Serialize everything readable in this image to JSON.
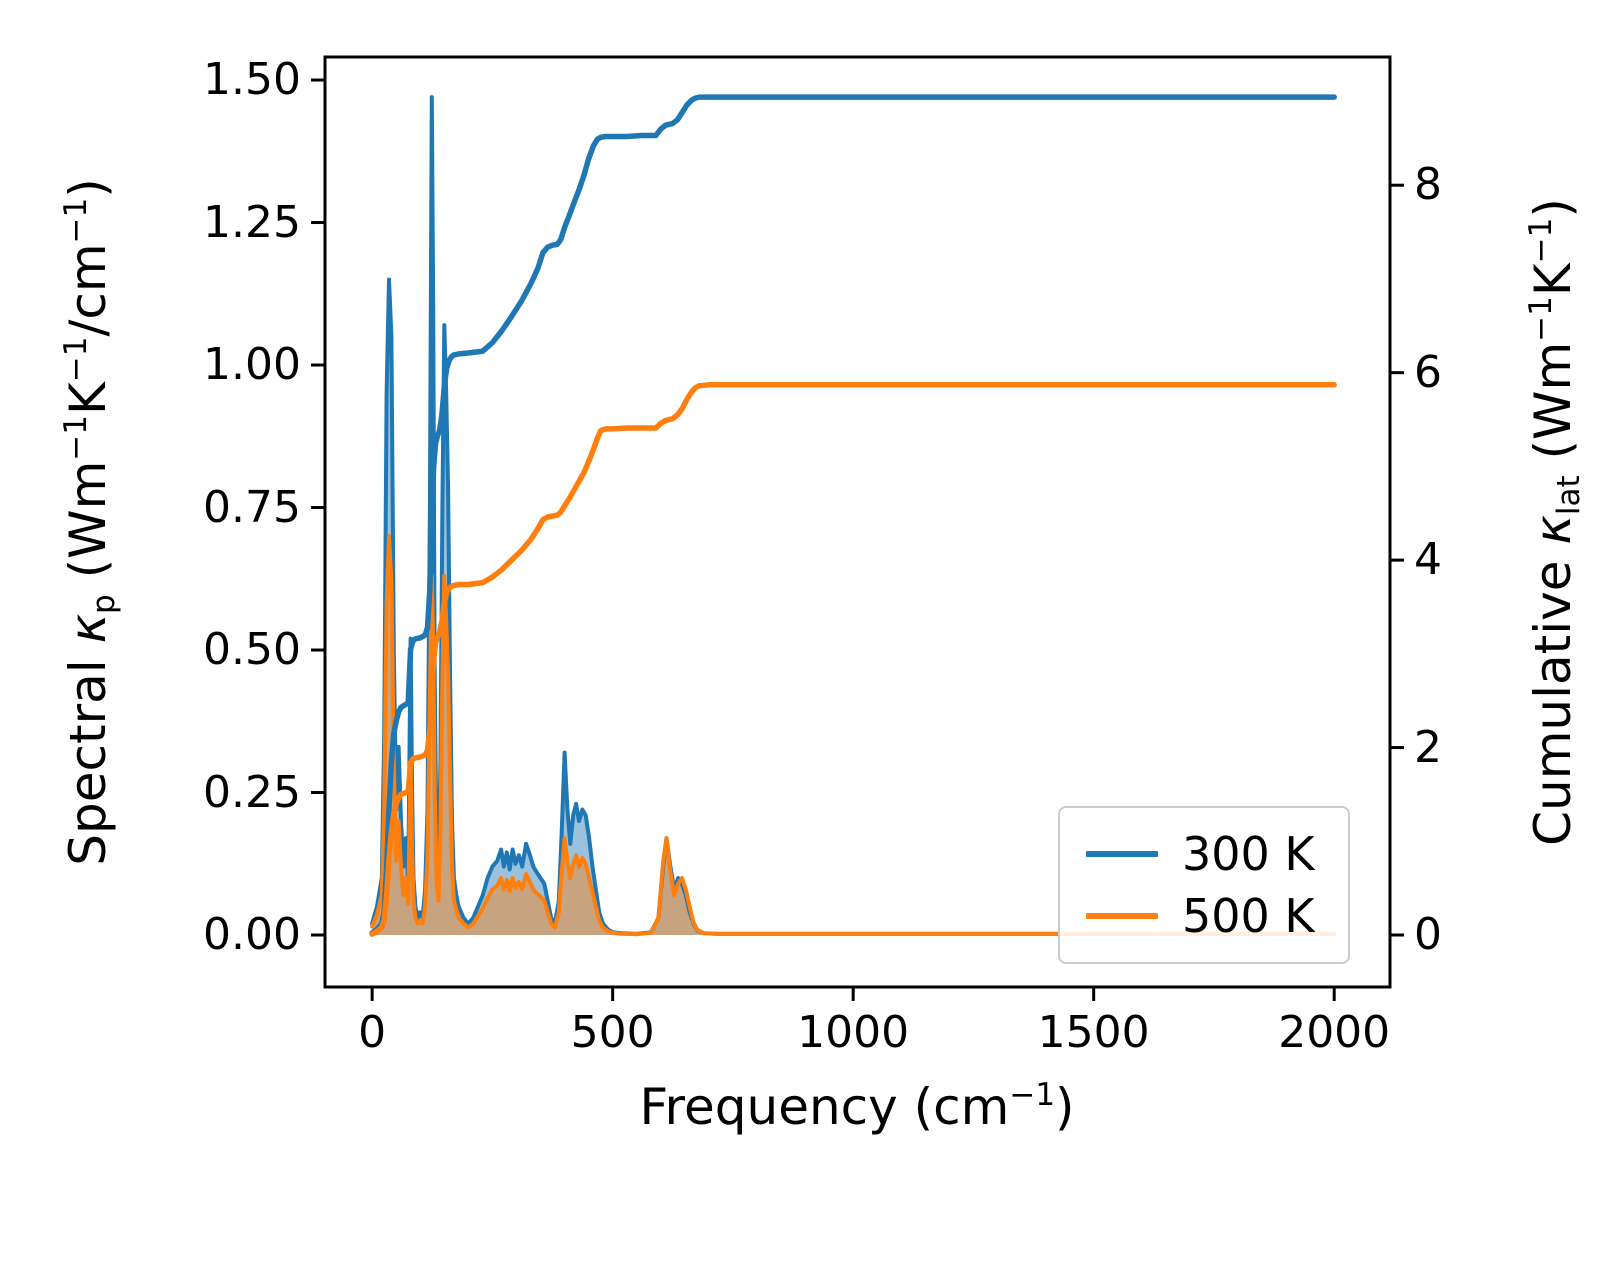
{
  "chart_data": {
    "type": "line",
    "xlabel_segments": [
      {
        "t": "Frequency (cm"
      },
      {
        "t": "−1",
        "sup": true
      },
      {
        "t": ")"
      }
    ],
    "ylabel_left_segments": [
      {
        "t": "Spectral "
      },
      {
        "t": "κ",
        "italic": true
      },
      {
        "t": "p",
        "sub": true
      },
      {
        "t": " (Wm"
      },
      {
        "t": "−1",
        "sup": true
      },
      {
        "t": "K"
      },
      {
        "t": "−1",
        "sup": true
      },
      {
        "t": "/cm"
      },
      {
        "t": "−1",
        "sup": true
      },
      {
        "t": ")"
      }
    ],
    "ylabel_right_segments": [
      {
        "t": "Cumulative "
      },
      {
        "t": "κ",
        "italic": true
      },
      {
        "t": "lat",
        "sub": true
      },
      {
        "t": " (Wm"
      },
      {
        "t": "−1",
        "sup": true
      },
      {
        "t": "K"
      },
      {
        "t": "−1",
        "sup": true
      },
      {
        "t": ")"
      }
    ],
    "xlim": [
      -98,
      2116
    ],
    "ylim_left": [
      -0.0912,
      1.5404
    ],
    "ylim_right": [
      -0.5547,
      9.368
    ],
    "xticks": {
      "values": [
        0,
        500,
        1000,
        1500,
        2000
      ],
      "labels": [
        "0",
        "500",
        "1000",
        "1500",
        "2000"
      ]
    },
    "yticks_left": {
      "values": [
        0,
        0.25,
        0.5,
        0.75,
        1.0,
        1.25,
        1.5
      ],
      "labels": [
        "0.00",
        "0.25",
        "0.50",
        "0.75",
        "1.00",
        "1.25",
        "1.50"
      ]
    },
    "yticks_right": {
      "values": [
        0,
        2,
        4,
        6,
        8
      ],
      "labels": [
        "0",
        "2",
        "4",
        "6",
        "8"
      ]
    },
    "legend": {
      "location": "lower right",
      "entries": [
        {
          "label": "300 K",
          "color": "#1f77b4"
        },
        {
          "label": "500 K",
          "color": "#ff7f0e"
        }
      ]
    },
    "spectral_x": [
      0,
      10,
      20,
      25,
      30,
      35,
      40,
      45,
      50,
      55,
      60,
      65,
      70,
      75,
      80,
      83,
      86,
      90,
      95,
      100,
      105,
      110,
      115,
      120,
      124,
      127,
      130,
      134,
      138,
      142,
      146,
      150,
      154,
      158,
      162,
      166,
      170,
      175,
      180,
      190,
      200,
      210,
      220,
      230,
      240,
      250,
      260,
      268,
      274,
      280,
      286,
      292,
      298,
      305,
      312,
      320,
      328,
      335,
      342,
      350,
      358,
      365,
      372,
      380,
      388,
      394,
      400,
      406,
      412,
      418,
      424,
      430,
      437,
      444,
      451,
      458,
      465,
      472,
      480,
      490,
      500,
      520,
      550,
      580,
      595,
      605,
      612,
      620,
      628,
      636,
      644,
      652,
      660,
      668,
      676,
      690,
      720,
      800,
      1000,
      1250,
      1500,
      1750,
      2000
    ],
    "cumulative_x": [
      0,
      10,
      20,
      25,
      30,
      35,
      40,
      45,
      50,
      55,
      60,
      70,
      75,
      80,
      85,
      90,
      100,
      110,
      115,
      120,
      124,
      128,
      132,
      136,
      140,
      145,
      150,
      155,
      160,
      165,
      170,
      180,
      200,
      230,
      250,
      270,
      290,
      310,
      330,
      345,
      355,
      365,
      375,
      385,
      392,
      400,
      410,
      420,
      430,
      440,
      450,
      460,
      468,
      475,
      485,
      500,
      530,
      560,
      590,
      600,
      610,
      625,
      635,
      645,
      655,
      665,
      672,
      680,
      700,
      800,
      1000,
      1250,
      1500,
      1750,
      2000
    ],
    "series": [
      {
        "name": "spectral-300K",
        "role": "spectral",
        "axis": "left",
        "color": "#1f77b4",
        "fill": true,
        "fill_opacity": 0.45,
        "x_ref": "spectral_x",
        "y": [
          0.02,
          0.05,
          0.1,
          0.35,
          0.95,
          1.15,
          1.05,
          0.5,
          0.22,
          0.33,
          0.2,
          0.12,
          0.17,
          0.09,
          0.52,
          0.25,
          0.1,
          0.05,
          0.03,
          0.04,
          0.03,
          0.08,
          0.22,
          0.75,
          1.47,
          1.1,
          0.45,
          0.15,
          0.1,
          0.3,
          0.75,
          1.07,
          0.95,
          0.78,
          0.45,
          0.2,
          0.1,
          0.07,
          0.05,
          0.03,
          0.02,
          0.03,
          0.05,
          0.07,
          0.1,
          0.12,
          0.13,
          0.15,
          0.12,
          0.145,
          0.115,
          0.15,
          0.125,
          0.14,
          0.12,
          0.16,
          0.14,
          0.12,
          0.11,
          0.1,
          0.09,
          0.06,
          0.03,
          0.02,
          0.06,
          0.18,
          0.32,
          0.22,
          0.16,
          0.21,
          0.23,
          0.2,
          0.22,
          0.21,
          0.17,
          0.12,
          0.08,
          0.04,
          0.02,
          0.01,
          0.005,
          0.003,
          0.002,
          0.005,
          0.03,
          0.12,
          0.17,
          0.12,
          0.08,
          0.1,
          0.09,
          0.07,
          0.04,
          0.02,
          0.008,
          0.003,
          0.002,
          0.002,
          0.002,
          0.002,
          0.002,
          0.002,
          0.002
        ]
      },
      {
        "name": "spectral-500K",
        "role": "spectral",
        "axis": "left",
        "color": "#ff7f0e",
        "fill": true,
        "fill_opacity": 0.45,
        "x_ref": "spectral_x",
        "y": [
          0.015,
          0.035,
          0.07,
          0.22,
          0.58,
          0.7,
          0.62,
          0.3,
          0.13,
          0.2,
          0.12,
          0.07,
          0.1,
          0.055,
          0.3,
          0.15,
          0.06,
          0.03,
          0.02,
          0.025,
          0.02,
          0.05,
          0.14,
          0.42,
          0.63,
          0.5,
          0.25,
          0.09,
          0.06,
          0.18,
          0.45,
          0.63,
          0.55,
          0.46,
          0.27,
          0.12,
          0.06,
          0.045,
          0.03,
          0.02,
          0.013,
          0.02,
          0.033,
          0.047,
          0.065,
          0.08,
          0.087,
          0.1,
          0.08,
          0.097,
          0.077,
          0.1,
          0.083,
          0.093,
          0.08,
          0.107,
          0.093,
          0.08,
          0.073,
          0.067,
          0.06,
          0.04,
          0.02,
          0.013,
          0.04,
          0.11,
          0.17,
          0.13,
          0.1,
          0.125,
          0.14,
          0.12,
          0.135,
          0.125,
          0.1,
          0.075,
          0.05,
          0.025,
          0.013,
          0.007,
          0.004,
          0.002,
          0.0015,
          0.004,
          0.03,
          0.13,
          0.17,
          0.11,
          0.07,
          0.09,
          0.1,
          0.08,
          0.05,
          0.022,
          0.009,
          0.003,
          0.002,
          0.002,
          0.002,
          0.002,
          0.002,
          0.002,
          0.002
        ]
      },
      {
        "name": "cumulative-300K",
        "role": "cumulative",
        "axis": "right",
        "color": "#1f77b4",
        "fill": false,
        "x_ref": "cumulative_x",
        "y": [
          0.02,
          0.06,
          0.12,
          0.25,
          0.7,
          1.35,
          1.85,
          2.15,
          2.28,
          2.38,
          2.43,
          2.46,
          2.48,
          3.05,
          3.14,
          3.16,
          3.17,
          3.2,
          3.28,
          3.7,
          4.5,
          5.0,
          5.25,
          5.33,
          5.38,
          5.55,
          5.85,
          6.05,
          6.13,
          6.17,
          6.19,
          6.2,
          6.21,
          6.23,
          6.32,
          6.45,
          6.6,
          6.76,
          6.95,
          7.12,
          7.28,
          7.34,
          7.36,
          7.37,
          7.42,
          7.55,
          7.68,
          7.82,
          7.95,
          8.1,
          8.28,
          8.42,
          8.49,
          8.51,
          8.52,
          8.52,
          8.52,
          8.53,
          8.53,
          8.6,
          8.64,
          8.66,
          8.7,
          8.78,
          8.86,
          8.91,
          8.93,
          8.94,
          8.94,
          8.94,
          8.94,
          8.94,
          8.94,
          8.94,
          8.94
        ]
      },
      {
        "name": "cumulative-500K",
        "role": "cumulative",
        "axis": "right",
        "color": "#ff7f0e",
        "fill": false,
        "x_ref": "cumulative_x",
        "y": [
          0.01,
          0.04,
          0.08,
          0.16,
          0.42,
          0.8,
          1.1,
          1.3,
          1.4,
          1.46,
          1.5,
          1.52,
          1.53,
          1.84,
          1.88,
          1.89,
          1.9,
          1.92,
          1.97,
          2.2,
          2.6,
          2.95,
          3.12,
          3.18,
          3.22,
          3.35,
          3.55,
          3.65,
          3.7,
          3.72,
          3.73,
          3.74,
          3.74,
          3.76,
          3.82,
          3.9,
          4.0,
          4.1,
          4.22,
          4.34,
          4.43,
          4.46,
          4.47,
          4.48,
          4.51,
          4.58,
          4.66,
          4.75,
          4.84,
          4.93,
          5.05,
          5.18,
          5.3,
          5.38,
          5.4,
          5.4,
          5.41,
          5.41,
          5.41,
          5.46,
          5.49,
          5.51,
          5.55,
          5.62,
          5.72,
          5.8,
          5.84,
          5.86,
          5.87,
          5.87,
          5.87,
          5.87,
          5.87,
          5.87,
          5.87
        ]
      }
    ]
  }
}
